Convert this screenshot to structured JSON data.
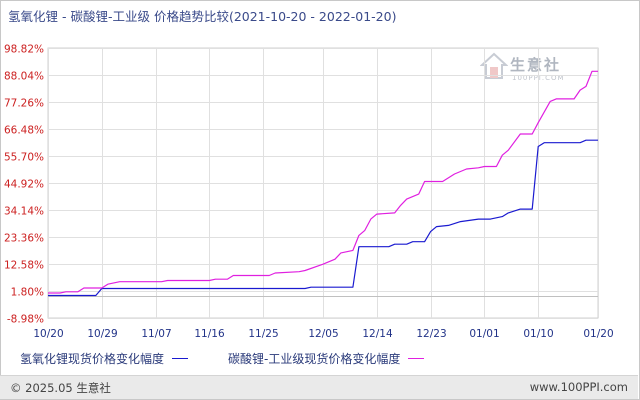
{
  "header": {
    "title": "氢氧化锂 - 碳酸锂-工业级 价格趋势比较(2021-10-20 - 2022-01-20)"
  },
  "watermark": {
    "name": "生意社",
    "url": "100PPI.COM"
  },
  "footer": {
    "left": "© 2025.05 生意社",
    "right": "www.100PPI.com"
  },
  "colors": {
    "series1": "#1a1ad0",
    "series2": "#e020e0",
    "ytick": "#cc2020",
    "xtick": "#223388",
    "grid": "#e0e0e0",
    "baseline": "#c0c0c0"
  },
  "chart_data": {
    "type": "line",
    "ylim": [
      -8.98,
      98.82
    ],
    "yticks": [
      "98.82%",
      "88.04%",
      "77.26%",
      "66.48%",
      "55.70%",
      "44.92%",
      "34.14%",
      "23.36%",
      "12.58%",
      "1.80%",
      "-8.98%"
    ],
    "ytick_values": [
      98.82,
      88.04,
      77.26,
      66.48,
      55.7,
      44.92,
      34.14,
      23.36,
      12.58,
      1.8,
      -8.98
    ],
    "xticks": [
      "10/20",
      "10/29",
      "11/07",
      "11/16",
      "11/25",
      "12/05",
      "12/14",
      "12/23",
      "01/01",
      "01/10",
      "01/20"
    ],
    "grid": true,
    "legend_position": "bottom",
    "series": [
      {
        "name": "氢氧化锂现货价格变化幅度",
        "points": [
          [
            "10/20",
            0
          ],
          [
            "10/28",
            0
          ],
          [
            "10/29",
            2.8
          ],
          [
            "11/25",
            2.8
          ],
          [
            "12/02",
            2.8
          ],
          [
            "12/03",
            3.3
          ],
          [
            "12/10",
            3.3
          ],
          [
            "12/11",
            19.5
          ],
          [
            "12/16",
            19.5
          ],
          [
            "12/17",
            20.5
          ],
          [
            "12/19",
            20.5
          ],
          [
            "12/20",
            21.5
          ],
          [
            "12/22",
            21.5
          ],
          [
            "12/23",
            25.5
          ],
          [
            "12/24",
            27.5
          ],
          [
            "12/26",
            28.0
          ],
          [
            "12/28",
            29.5
          ],
          [
            "12/31",
            30.5
          ],
          [
            "01/02",
            30.5
          ],
          [
            "01/04",
            31.5
          ],
          [
            "01/05",
            33.0
          ],
          [
            "01/07",
            34.5
          ],
          [
            "01/09",
            34.5
          ],
          [
            "01/10",
            59.5
          ],
          [
            "01/11",
            61.0
          ],
          [
            "01/17",
            61.0
          ],
          [
            "01/18",
            62.0
          ],
          [
            "01/20",
            62.0
          ]
        ]
      },
      {
        "name": "碳酸锂-工业级现货价格变化幅度",
        "points": [
          [
            "10/20",
            1.0
          ],
          [
            "10/22",
            1.0
          ],
          [
            "10/23",
            1.5
          ],
          [
            "10/25",
            1.5
          ],
          [
            "10/26",
            3.0
          ],
          [
            "10/29",
            3.0
          ],
          [
            "10/30",
            4.5
          ],
          [
            "11/01",
            5.5
          ],
          [
            "11/08",
            5.5
          ],
          [
            "11/09",
            6.0
          ],
          [
            "11/16",
            6.0
          ],
          [
            "11/17",
            6.5
          ],
          [
            "11/19",
            6.5
          ],
          [
            "11/20",
            8.0
          ],
          [
            "11/26",
            8.0
          ],
          [
            "11/27",
            9.0
          ],
          [
            "12/01",
            9.5
          ],
          [
            "12/02",
            10.0
          ],
          [
            "12/05",
            12.5
          ],
          [
            "12/07",
            14.5
          ],
          [
            "12/08",
            17.0
          ],
          [
            "12/10",
            18.0
          ],
          [
            "12/11",
            24.0
          ],
          [
            "12/12",
            26.0
          ],
          [
            "12/13",
            30.5
          ],
          [
            "12/14",
            32.5
          ],
          [
            "12/17",
            33.0
          ],
          [
            "12/18",
            36.0
          ],
          [
            "12/19",
            38.5
          ],
          [
            "12/21",
            40.5
          ],
          [
            "12/22",
            45.5
          ],
          [
            "12/25",
            45.5
          ],
          [
            "12/27",
            48.5
          ],
          [
            "12/29",
            50.5
          ],
          [
            "12/31",
            51.0
          ],
          [
            "01/01",
            51.5
          ],
          [
            "01/03",
            51.5
          ],
          [
            "01/04",
            56.0
          ],
          [
            "01/05",
            58.0
          ],
          [
            "01/07",
            64.5
          ],
          [
            "01/09",
            64.5
          ],
          [
            "01/10",
            69.0
          ],
          [
            "01/12",
            77.5
          ],
          [
            "01/13",
            78.5
          ],
          [
            "01/16",
            78.5
          ],
          [
            "01/17",
            82.0
          ],
          [
            "01/18",
            83.5
          ],
          [
            "01/19",
            89.5
          ],
          [
            "01/20",
            89.5
          ]
        ]
      }
    ]
  }
}
